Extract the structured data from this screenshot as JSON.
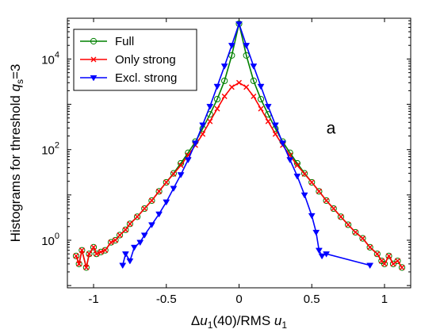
{
  "chart_data": {
    "type": "line",
    "title": "",
    "xlabel": {
      "delta": "Δ",
      "u": "u",
      "sub": "1",
      "mid": "(40)/RMS ",
      "u2": "u",
      "sub2": "1"
    },
    "ylabel": {
      "prefix": "Histograms  for threshold ",
      "q": "q",
      "sub": "s",
      "suffix": "=3"
    },
    "xlim": [
      -1.18,
      1.18
    ],
    "ylim_log10": [
      -1.05,
      4.9
    ],
    "yscale": "log",
    "grid": false,
    "legend_position": "top-left",
    "xticks": [
      {
        "value": -1,
        "label": "-1"
      },
      {
        "value": -0.5,
        "label": "-0.5"
      },
      {
        "value": 0,
        "label": "0"
      },
      {
        "value": 0.5,
        "label": "0.5"
      },
      {
        "value": 1,
        "label": "1"
      }
    ],
    "yticks": [
      {
        "value": 1,
        "base": "10",
        "exp": "0"
      },
      {
        "value": 100,
        "base": "10",
        "exp": "2"
      },
      {
        "value": 10000,
        "base": "10",
        "exp": "4"
      }
    ],
    "annotation": {
      "text": "a",
      "x": 0.6,
      "y": 300
    },
    "series": [
      {
        "name": "Full",
        "color": "#008000",
        "marker": "circle",
        "points": [
          [
            -1.12,
            0.45
          ],
          [
            -1.1,
            0.3
          ],
          [
            -1.08,
            0.6
          ],
          [
            -1.05,
            0.25
          ],
          [
            -1.03,
            0.5
          ],
          [
            -1.0,
            0.7
          ],
          [
            -0.98,
            0.5
          ],
          [
            -0.95,
            0.55
          ],
          [
            -0.92,
            0.6
          ],
          [
            -0.88,
            0.9
          ],
          [
            -0.85,
            1.0
          ],
          [
            -0.82,
            1.3
          ],
          [
            -0.78,
            1.7
          ],
          [
            -0.75,
            2.3
          ],
          [
            -0.7,
            3.3
          ],
          [
            -0.65,
            5
          ],
          [
            -0.6,
            7.5
          ],
          [
            -0.55,
            12
          ],
          [
            -0.5,
            19
          ],
          [
            -0.45,
            30
          ],
          [
            -0.4,
            50
          ],
          [
            -0.35,
            85
          ],
          [
            -0.3,
            150
          ],
          [
            -0.25,
            290
          ],
          [
            -0.2,
            600
          ],
          [
            -0.15,
            1300
          ],
          [
            -0.1,
            3300
          ],
          [
            -0.05,
            12000
          ],
          [
            0.0,
            60000
          ],
          [
            0.05,
            12000
          ],
          [
            0.1,
            3300
          ],
          [
            0.15,
            1300
          ],
          [
            0.2,
            600
          ],
          [
            0.25,
            290
          ],
          [
            0.3,
            150
          ],
          [
            0.35,
            85
          ],
          [
            0.4,
            50
          ],
          [
            0.45,
            30
          ],
          [
            0.5,
            19
          ],
          [
            0.55,
            12
          ],
          [
            0.6,
            7.5
          ],
          [
            0.65,
            5
          ],
          [
            0.7,
            3.3
          ],
          [
            0.75,
            2.2
          ],
          [
            0.8,
            1.5
          ],
          [
            0.85,
            1.1
          ],
          [
            0.9,
            0.7
          ],
          [
            0.95,
            0.5
          ],
          [
            0.98,
            0.35
          ],
          [
            1.0,
            0.3
          ],
          [
            1.03,
            0.45
          ],
          [
            1.06,
            0.3
          ],
          [
            1.09,
            0.35
          ],
          [
            1.12,
            0.25
          ]
        ]
      },
      {
        "name": "Only strong",
        "color": "#ff0000",
        "marker": "x",
        "points": [
          [
            -1.12,
            0.45
          ],
          [
            -1.1,
            0.3
          ],
          [
            -1.08,
            0.6
          ],
          [
            -1.05,
            0.25
          ],
          [
            -1.03,
            0.5
          ],
          [
            -1.0,
            0.7
          ],
          [
            -0.98,
            0.5
          ],
          [
            -0.95,
            0.55
          ],
          [
            -0.92,
            0.6
          ],
          [
            -0.88,
            0.9
          ],
          [
            -0.85,
            1.0
          ],
          [
            -0.82,
            1.3
          ],
          [
            -0.78,
            1.7
          ],
          [
            -0.75,
            2.3
          ],
          [
            -0.7,
            3.3
          ],
          [
            -0.65,
            5
          ],
          [
            -0.6,
            7.5
          ],
          [
            -0.55,
            12
          ],
          [
            -0.5,
            19
          ],
          [
            -0.45,
            29
          ],
          [
            -0.4,
            45
          ],
          [
            -0.35,
            75
          ],
          [
            -0.3,
            125
          ],
          [
            -0.25,
            220
          ],
          [
            -0.2,
            420
          ],
          [
            -0.15,
            800
          ],
          [
            -0.1,
            1500
          ],
          [
            -0.05,
            2400
          ],
          [
            0.0,
            3000
          ],
          [
            0.05,
            2400
          ],
          [
            0.1,
            1500
          ],
          [
            0.15,
            800
          ],
          [
            0.2,
            420
          ],
          [
            0.25,
            220
          ],
          [
            0.3,
            125
          ],
          [
            0.35,
            75
          ],
          [
            0.4,
            45
          ],
          [
            0.45,
            29
          ],
          [
            0.5,
            19
          ],
          [
            0.55,
            12
          ],
          [
            0.6,
            7.5
          ],
          [
            0.65,
            5
          ],
          [
            0.7,
            3.3
          ],
          [
            0.75,
            2.2
          ],
          [
            0.8,
            1.5
          ],
          [
            0.85,
            1.1
          ],
          [
            0.9,
            0.7
          ],
          [
            0.95,
            0.5
          ],
          [
            0.98,
            0.35
          ],
          [
            1.0,
            0.3
          ],
          [
            1.03,
            0.45
          ],
          [
            1.06,
            0.3
          ],
          [
            1.09,
            0.35
          ],
          [
            1.12,
            0.25
          ]
        ]
      },
      {
        "name": "Excl. strong",
        "color": "#0000ff",
        "marker": "triangle-down",
        "points": [
          [
            -0.8,
            0.28
          ],
          [
            -0.78,
            0.5
          ],
          [
            -0.75,
            0.35
          ],
          [
            -0.72,
            0.7
          ],
          [
            -0.68,
            0.9
          ],
          [
            -0.65,
            1.3
          ],
          [
            -0.6,
            2.2
          ],
          [
            -0.55,
            3.8
          ],
          [
            -0.5,
            7
          ],
          [
            -0.45,
            14
          ],
          [
            -0.4,
            28
          ],
          [
            -0.35,
            60
          ],
          [
            -0.3,
            140
          ],
          [
            -0.25,
            350
          ],
          [
            -0.2,
            900
          ],
          [
            -0.15,
            2500
          ],
          [
            -0.1,
            7000
          ],
          [
            -0.05,
            20000
          ],
          [
            0.0,
            60000
          ],
          [
            0.05,
            20000
          ],
          [
            0.1,
            7000
          ],
          [
            0.15,
            2500
          ],
          [
            0.2,
            900
          ],
          [
            0.25,
            350
          ],
          [
            0.3,
            140
          ],
          [
            0.35,
            60
          ],
          [
            0.4,
            26
          ],
          [
            0.45,
            10
          ],
          [
            0.5,
            3.5
          ],
          [
            0.53,
            1.5
          ],
          [
            0.55,
            0.6
          ],
          [
            0.57,
            0.45
          ],
          [
            0.6,
            0.5
          ],
          [
            0.9,
            0.28
          ]
        ]
      }
    ]
  }
}
